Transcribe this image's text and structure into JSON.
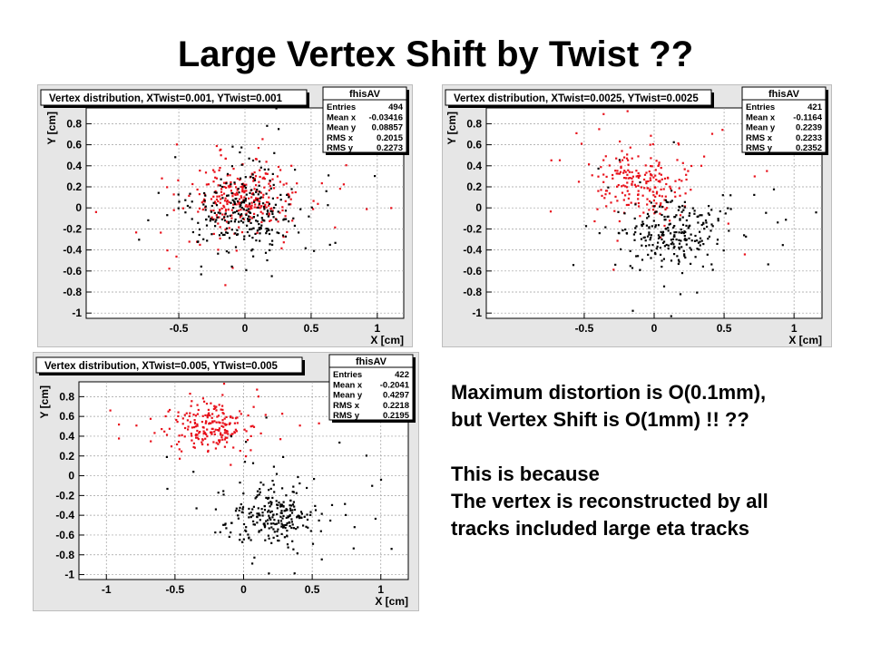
{
  "slide_title": "Large Vertex Shift by Twist ??",
  "notes": {
    "line1": "Maximum distortion is O(0.1mm),",
    "line2": "but Vertex Shift is O(1mm) !! ??",
    "line3": "This is because",
    "line4": "The vertex is reconstructed by all",
    "line5": "tracks included large eta tracks"
  },
  "colors": {
    "series_red": "#e8101a",
    "series_black": "#000000",
    "frame_bg": "#e6e6e6",
    "grid": "#9e9e9e"
  },
  "chart_data": [
    {
      "type": "scatter",
      "title": "Vertex distribution, XTwist=0.001, YTwist=0.001",
      "xlabel": "X [cm]",
      "ylabel": "Y [cm]",
      "xlim": [
        -1.2,
        1.2
      ],
      "ylim": [
        -1.05,
        0.95
      ],
      "xticks": [
        -0.5,
        0,
        0.5,
        1
      ],
      "xtick_labels": [
        "-0.5",
        "0",
        "0.5",
        "1"
      ],
      "yticks": [
        -1,
        -0.8,
        -0.6,
        -0.4,
        -0.2,
        0,
        0.2,
        0.4,
        0.6,
        0.8
      ],
      "ytick_labels": [
        "-1",
        "-0.8",
        "-0.6",
        "-0.4",
        "-0.2",
        "0",
        "0.2",
        "0.4",
        "0.6",
        "0.8"
      ],
      "grid": true,
      "stats": {
        "name": "fhisAV",
        "rows": [
          [
            "Entries",
            "494"
          ],
          [
            "Mean x",
            "-0.03416"
          ],
          [
            "Mean y",
            "0.08857"
          ],
          [
            "RMS x",
            "0.2015"
          ],
          [
            "RMS y",
            "0.2273"
          ]
        ]
      },
      "series": [
        {
          "color": "red",
          "cx": -0.03,
          "cy": 0.12,
          "sx": 0.2,
          "sy": 0.16,
          "n": 300,
          "seed": 11
        },
        {
          "color": "black",
          "cx": 0.0,
          "cy": -0.05,
          "sx": 0.2,
          "sy": 0.2,
          "n": 280,
          "seed": 23
        }
      ]
    },
    {
      "type": "scatter",
      "title": "Vertex distribution, XTwist=0.0025, YTwist=0.0025",
      "xlabel": "X [cm]",
      "ylabel": "Y [cm]",
      "xlim": [
        -1.2,
        1.2
      ],
      "ylim": [
        -1.05,
        0.95
      ],
      "xticks": [
        -0.5,
        0,
        0.5,
        1
      ],
      "xtick_labels": [
        "-0.5",
        "0",
        "0.5",
        "1"
      ],
      "yticks": [
        -1,
        -0.8,
        -0.6,
        -0.4,
        -0.2,
        0,
        0.2,
        0.4,
        0.6,
        0.8
      ],
      "ytick_labels": [
        "-1",
        "-0.8",
        "-0.6",
        "-0.4",
        "-0.2",
        "0",
        "0.2",
        "0.4",
        "0.6",
        "0.8"
      ],
      "grid": true,
      "stats": {
        "name": "fhisAV",
        "rows": [
          [
            "Entries",
            "421"
          ],
          [
            "Mean x",
            "-0.1164"
          ],
          [
            "Mean y",
            "0.2239"
          ],
          [
            "RMS x",
            "0.2233"
          ],
          [
            "RMS y",
            "0.2352"
          ]
        ]
      },
      "series": [
        {
          "color": "red",
          "cx": -0.12,
          "cy": 0.23,
          "sx": 0.17,
          "sy": 0.15,
          "n": 220,
          "seed": 37
        },
        {
          "color": "black",
          "cx": 0.12,
          "cy": -0.25,
          "sx": 0.2,
          "sy": 0.17,
          "n": 260,
          "seed": 41
        }
      ]
    },
    {
      "type": "scatter",
      "title": "Vertex distribution, XTwist=0.005, YTwist=0.005",
      "xlabel": "X [cm]",
      "ylabel": "Y [cm]",
      "xlim": [
        -1.2,
        1.2
      ],
      "ylim": [
        -1.05,
        0.95
      ],
      "xticks": [
        -1,
        -0.5,
        0,
        0.5,
        1
      ],
      "xtick_labels": [
        "-1",
        "-0.5",
        "0",
        "0.5",
        "1"
      ],
      "yticks": [
        -1,
        -0.8,
        -0.6,
        -0.4,
        -0.2,
        0,
        0.2,
        0.4,
        0.6,
        0.8
      ],
      "ytick_labels": [
        "-1",
        "-0.8",
        "-0.6",
        "-0.4",
        "-0.2",
        "0",
        "0.2",
        "0.4",
        "0.6",
        "0.8"
      ],
      "grid": true,
      "stats": {
        "name": "fhisAV",
        "rows": [
          [
            "Entries",
            "422"
          ],
          [
            "Mean x",
            "-0.2041"
          ],
          [
            "Mean y",
            "0.4297"
          ],
          [
            "RMS x",
            "0.2218"
          ],
          [
            "RMS y",
            "0.2195"
          ]
        ]
      },
      "series": [
        {
          "color": "red",
          "cx": -0.25,
          "cy": 0.5,
          "sx": 0.15,
          "sy": 0.13,
          "n": 220,
          "seed": 53
        },
        {
          "color": "black",
          "cx": 0.2,
          "cy": -0.42,
          "sx": 0.17,
          "sy": 0.15,
          "n": 270,
          "seed": 67
        }
      ]
    }
  ]
}
